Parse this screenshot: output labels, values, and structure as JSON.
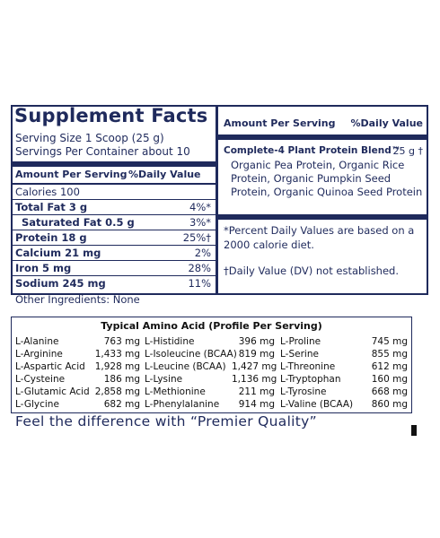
{
  "supplement_facts": {
    "title": "Supplement Facts",
    "serving_size": "Serving Size 1 Scoop (25 g)",
    "servings_per_container": "Servings Per Container about 10",
    "header_amount": "Amount Per Serving",
    "header_dv": "%Daily Value",
    "rows": [
      {
        "label": "Calories 100",
        "dv": ""
      },
      {
        "label": "Total Fat  3 g",
        "dv": "4%*"
      },
      {
        "label": "  Saturated Fat  0.5 g",
        "dv": "3%*"
      },
      {
        "label": "Protein 18 g",
        "dv": "25%†"
      },
      {
        "label": "Calcium 21 mg",
        "dv": "2%"
      },
      {
        "label": "Iron  5 mg",
        "dv": "28%"
      },
      {
        "label": "Sodium 245 mg",
        "dv": "11%"
      }
    ],
    "other_ingredients": "Other Ingredients: None",
    "right": {
      "header_amount": "Amount Per Serving",
      "header_dv": "%Daily Value",
      "blend_name": "Complete-4 Plant Protein Blend™",
      "blend_amount": "25 g †",
      "blend_desc": "Organic Pea Protein, Organic Rice Protein, Organic Pumpkin Seed Protein, Organic Quinoa Seed Protein",
      "note_percent": "*Percent Daily Values are based on a 2000 calorie diet.",
      "note_dagger": "†Daily Value (DV) not established."
    }
  },
  "amino": {
    "title": "Typical Amino Acid (Profile Per Serving)",
    "col1": [
      {
        "name": "L-Alanine",
        "amount": "763 mg"
      },
      {
        "name": "L-Arginine",
        "amount": "1,433 mg"
      },
      {
        "name": "L-Aspartic Acid",
        "amount": "1,928 mg"
      },
      {
        "name": "L-Cysteine",
        "amount": "186 mg"
      },
      {
        "name": "L-Glutamic Acid",
        "amount": "2,858 mg"
      },
      {
        "name": "L-Glycine",
        "amount": "682 mg"
      }
    ],
    "col2": [
      {
        "name": "L-Histidine",
        "amount": "396 mg"
      },
      {
        "name": "L-Isoleucine (BCAA)",
        "amount": "819 mg"
      },
      {
        "name": "L-Leucine (BCAA)",
        "amount": "1,427 mg"
      },
      {
        "name": "L-Lysine",
        "amount": "1,136 mg"
      },
      {
        "name": "L-Methionine",
        "amount": "211 mg"
      },
      {
        "name": "L-Phenylalanine",
        "amount": "914 mg"
      }
    ],
    "col3": [
      {
        "name": "L-Proline",
        "amount": "745 mg"
      },
      {
        "name": "L-Serine",
        "amount": "855 mg"
      },
      {
        "name": "L-Threonine",
        "amount": "612 mg"
      },
      {
        "name": "L-Tryptophan",
        "amount": "160 mg"
      },
      {
        "name": "L-Tyrosine",
        "amount": "668 mg"
      },
      {
        "name": "L-Valine (BCAA)",
        "amount": "860 mg"
      }
    ]
  },
  "tagline": "Feel the difference with “Premier Quality”",
  "colors": {
    "brand_navy": "#1f2a5c",
    "text_dark": "#111111"
  }
}
